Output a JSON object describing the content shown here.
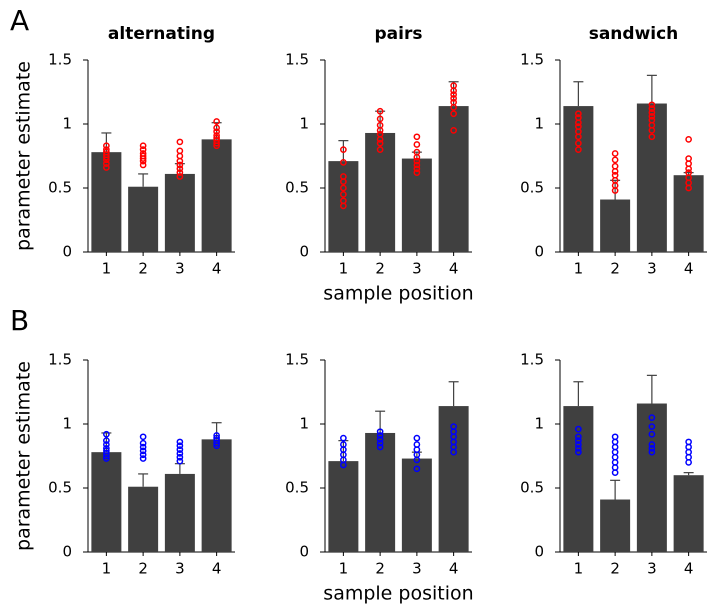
{
  "panel_labels": [
    "A",
    "B"
  ],
  "chart_data": [
    {
      "type": "bar",
      "title": "alternating",
      "ylabel": "parameter estimate",
      "categories": [
        "1",
        "2",
        "3",
        "4"
      ],
      "values": [
        0.78,
        0.51,
        0.61,
        0.88
      ],
      "errors": [
        0.15,
        0.1,
        0.08,
        0.13
      ],
      "color": "#404040",
      "point_color": "#ff0000",
      "points": [
        [
          0.66,
          0.69,
          0.72,
          0.74,
          0.76,
          0.78,
          0.8,
          0.83
        ],
        [
          0.68,
          0.71,
          0.73,
          0.75,
          0.77,
          0.8,
          0.83
        ],
        [
          0.59,
          0.62,
          0.65,
          0.68,
          0.71,
          0.75,
          0.79,
          0.86
        ],
        [
          0.83,
          0.85,
          0.87,
          0.89,
          0.91,
          0.94,
          0.97,
          1.02
        ]
      ],
      "ylim": [
        0,
        1.5
      ],
      "yticks": [
        0,
        0.5,
        1,
        1.5
      ]
    },
    {
      "type": "bar",
      "title": "pairs",
      "xlabel": "sample position",
      "categories": [
        "1",
        "2",
        "3",
        "4"
      ],
      "values": [
        0.71,
        0.93,
        0.73,
        1.14
      ],
      "errors": [
        0.16,
        0.17,
        0.05,
        0.19
      ],
      "color": "#404040",
      "point_color": "#ff0000",
      "points": [
        [
          0.36,
          0.4,
          0.45,
          0.5,
          0.55,
          0.59,
          0.7,
          0.8
        ],
        [
          0.8,
          0.85,
          0.88,
          0.92,
          0.95,
          0.99,
          1.04,
          1.1
        ],
        [
          0.62,
          0.65,
          0.68,
          0.71,
          0.74,
          0.78,
          0.84,
          0.9
        ],
        [
          0.95,
          1.08,
          1.13,
          1.17,
          1.2,
          1.23,
          1.26,
          1.3
        ]
      ],
      "ylim": [
        0,
        1.5
      ],
      "yticks": [
        0,
        0.5,
        1,
        1.5
      ]
    },
    {
      "type": "bar",
      "title": "sandwich",
      "categories": [
        "1",
        "2",
        "3",
        "4"
      ],
      "values": [
        1.14,
        0.41,
        1.16,
        0.6
      ],
      "errors": [
        0.19,
        0.15,
        0.22,
        0.02
      ],
      "color": "#404040",
      "point_color": "#ff0000",
      "points": [
        [
          0.8,
          0.85,
          0.9,
          0.94,
          0.98,
          1.01,
          1.05,
          1.08
        ],
        [
          0.48,
          0.52,
          0.56,
          0.6,
          0.63,
          0.67,
          0.72,
          0.77
        ],
        [
          0.9,
          0.95,
          0.99,
          1.03,
          1.06,
          1.09,
          1.12,
          1.15
        ],
        [
          0.5,
          0.54,
          0.58,
          0.62,
          0.65,
          0.69,
          0.73,
          0.88
        ]
      ],
      "ylim": [
        0,
        1.5
      ],
      "yticks": [
        0,
        0.5,
        1,
        1.5
      ]
    },
    {
      "type": "bar",
      "ylabel": "parameter estimate",
      "categories": [
        "1",
        "2",
        "3",
        "4"
      ],
      "values": [
        0.78,
        0.51,
        0.61,
        0.88
      ],
      "errors": [
        0.15,
        0.1,
        0.08,
        0.13
      ],
      "color": "#404040",
      "point_color": "#0000ff",
      "points": [
        [
          0.73,
          0.75,
          0.77,
          0.79,
          0.81,
          0.84,
          0.87,
          0.92
        ],
        [
          0.73,
          0.76,
          0.79,
          0.82,
          0.85,
          0.9
        ],
        [
          0.71,
          0.74,
          0.77,
          0.8,
          0.83,
          0.86
        ],
        [
          0.83,
          0.85,
          0.87,
          0.89,
          0.91
        ]
      ],
      "ylim": [
        0,
        1.5
      ],
      "yticks": [
        0,
        0.5,
        1,
        1.5
      ]
    },
    {
      "type": "bar",
      "xlabel": "sample position",
      "categories": [
        "1",
        "2",
        "3",
        "4"
      ],
      "values": [
        0.71,
        0.93,
        0.73,
        1.14
      ],
      "errors": [
        0.16,
        0.17,
        0.05,
        0.19
      ],
      "color": "#404040",
      "point_color": "#0000ff",
      "points": [
        [
          0.68,
          0.72,
          0.76,
          0.8,
          0.84,
          0.89
        ],
        [
          0.82,
          0.85,
          0.88,
          0.91,
          0.94
        ],
        [
          0.65,
          0.72,
          0.76,
          0.8,
          0.84,
          0.89
        ],
        [
          0.78,
          0.82,
          0.86,
          0.9,
          0.94,
          0.98
        ]
      ],
      "ylim": [
        0,
        1.5
      ],
      "yticks": [
        0,
        0.5,
        1,
        1.5
      ]
    },
    {
      "type": "bar",
      "categories": [
        "1",
        "2",
        "3",
        "4"
      ],
      "values": [
        1.14,
        0.41,
        1.16,
        0.6
      ],
      "errors": [
        0.19,
        0.15,
        0.22,
        0.02
      ],
      "color": "#404040",
      "point_color": "#0000ff",
      "points": [
        [
          0.78,
          0.81,
          0.84,
          0.87,
          0.9,
          0.96
        ],
        [
          0.62,
          0.66,
          0.7,
          0.74,
          0.78,
          0.82,
          0.86,
          0.9
        ],
        [
          0.78,
          0.81,
          0.84,
          0.92,
          0.98,
          1.05
        ],
        [
          0.7,
          0.74,
          0.78,
          0.82,
          0.86
        ]
      ],
      "ylim": [
        0,
        1.5
      ],
      "yticks": [
        0,
        0.5,
        1,
        1.5
      ]
    }
  ]
}
